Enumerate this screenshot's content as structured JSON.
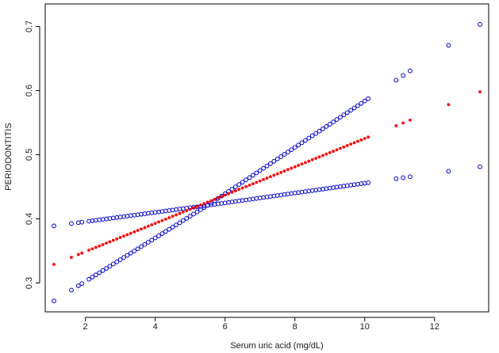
{
  "chart_data": {
    "type": "scatter",
    "title": "",
    "xlabel": "Serum uric acid (mg/dL)",
    "ylabel": "PERIODONTITIS",
    "xlim": [
      0.85,
      13.55
    ],
    "ylim": [
      0.255,
      0.735
    ],
    "x_ticks": [
      2,
      4,
      6,
      8,
      10,
      12
    ],
    "y_ticks": [
      0.3,
      0.4,
      0.5,
      0.6,
      0.7
    ],
    "x_tick_labels": [
      "2",
      "4",
      "6",
      "8",
      "10",
      "12"
    ],
    "y_tick_labels": [
      "0.3",
      "0.4",
      "0.5",
      "0.6",
      "0.7"
    ],
    "grid": false,
    "legend": "none",
    "pivot": {
      "x": 5.5,
      "y": 0.421
    },
    "x": [
      1.1,
      1.6,
      1.8,
      1.9,
      2.1,
      2.2,
      2.3,
      2.4,
      2.5,
      2.6,
      2.7,
      2.8,
      2.9,
      3.0,
      3.1,
      3.2,
      3.3,
      3.4,
      3.5,
      3.6,
      3.7,
      3.8,
      3.9,
      4.0,
      4.1,
      4.2,
      4.3,
      4.4,
      4.5,
      4.6,
      4.7,
      4.8,
      4.9,
      5.0,
      5.1,
      5.2,
      5.3,
      5.4,
      5.5,
      5.6,
      5.7,
      5.8,
      5.9,
      6.0,
      6.1,
      6.2,
      6.3,
      6.4,
      6.5,
      6.6,
      6.7,
      6.8,
      6.9,
      7.0,
      7.1,
      7.2,
      7.3,
      7.4,
      7.5,
      7.6,
      7.7,
      7.8,
      7.9,
      8.0,
      8.1,
      8.2,
      8.3,
      8.4,
      8.5,
      8.6,
      8.7,
      8.8,
      8.9,
      9.0,
      9.1,
      9.2,
      9.3,
      9.4,
      9.5,
      9.6,
      9.7,
      9.8,
      9.9,
      10.0,
      10.1,
      10.9,
      11.1,
      11.3,
      12.4,
      13.3
    ],
    "series": [
      {
        "values_at": "upper",
        "slope_left": -0.0087,
        "slope_right": 0.0373,
        "end": [
          13.3,
          0.703
        ],
        "start": [
          1.1,
          0.389
        ],
        "color": "#0000cc",
        "marker": "open-circle"
      },
      {
        "values_at": "estimate",
        "slope": 0.0221,
        "start": [
          1.1,
          0.329
        ],
        "end": [
          13.3,
          0.598
        ],
        "color": "#ff0000",
        "marker": "filled-dot"
      },
      {
        "values_at": "lower",
        "slope_left": 0.0338,
        "slope_right": 0.0076,
        "start": [
          1.1,
          0.272
        ],
        "end": [
          13.3,
          0.481
        ],
        "color": "#0000cc",
        "marker": "open-circle"
      }
    ],
    "colors": {
      "ci": "#0000cc",
      "estimate": "#ff0000"
    }
  }
}
